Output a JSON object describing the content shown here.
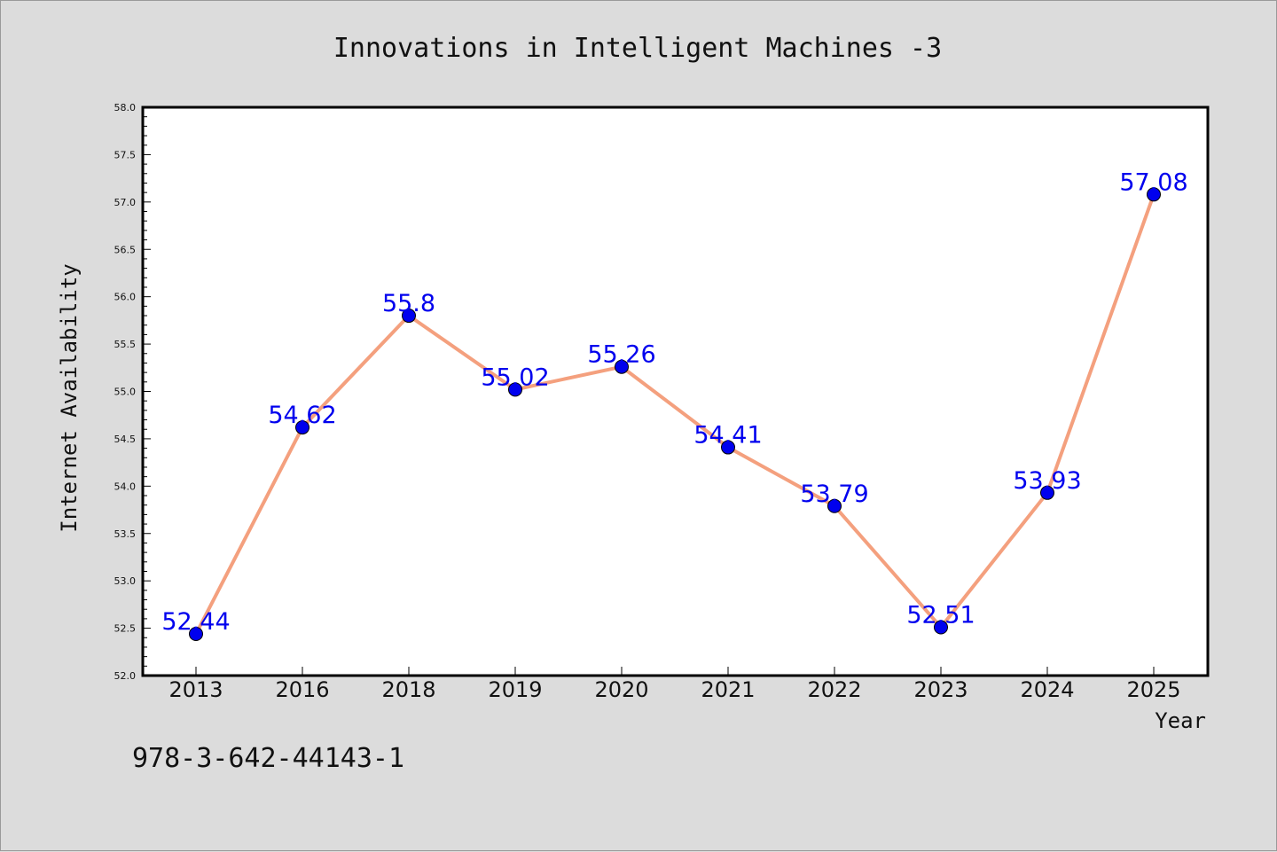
{
  "chart_data": {
    "type": "line",
    "title": "Innovations in Intelligent Machines -3",
    "xlabel": "Year",
    "ylabel": "Internet Availability",
    "categories": [
      "2013",
      "2016",
      "2018",
      "2019",
      "2020",
      "2021",
      "2022",
      "2023",
      "2024",
      "2025"
    ],
    "series": [
      {
        "values": [
          52.44,
          54.62,
          55.8,
          55.02,
          55.26,
          54.41,
          53.79,
          52.51,
          53.93,
          57.08
        ],
        "labels": [
          "52.44",
          "54.62",
          "55.8",
          "55.02",
          "55.26",
          "54.41",
          "53.79",
          "52.51",
          "53.93",
          "57.08"
        ],
        "line_color": "#f4a07e",
        "marker_color": "#0000ee"
      }
    ],
    "ylim": [
      52.0,
      58.0
    ],
    "yticks": [
      "52.0",
      "52.5",
      "53.0",
      "53.5",
      "54.0",
      "54.5",
      "55.0",
      "55.5",
      "56.0",
      "56.5",
      "57.0",
      "57.5",
      "58.0"
    ],
    "grid": false,
    "legend": "none"
  },
  "footer_text": "978-3-642-44143-1",
  "colors": {
    "background": "#dcdcdc",
    "plot_background": "#ffffff",
    "label_color": "#0000ee"
  }
}
